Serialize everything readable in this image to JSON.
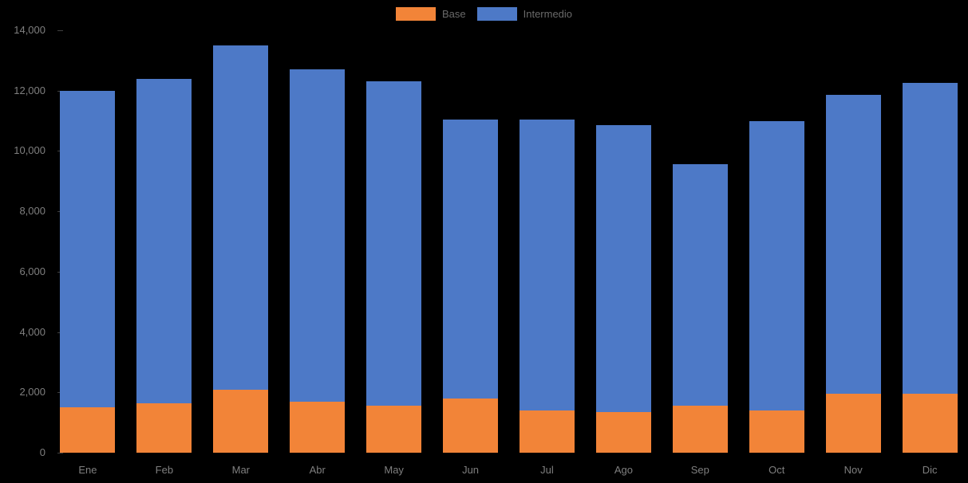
{
  "colors": {
    "base": "#F28438",
    "intermedio": "#4D79C7",
    "axis_text": "#7f7f7f",
    "legend_text": "#6a6a6a",
    "tick": "#3f3f3f",
    "background": "#000000"
  },
  "chart_data": {
    "type": "bar",
    "stacked": true,
    "title": "",
    "xlabel": "",
    "ylabel": "",
    "categories": [
      "Ene",
      "Feb",
      "Mar",
      "Abr",
      "May",
      "Jun",
      "Jul",
      "Ago",
      "Sep",
      "Oct",
      "Nov",
      "Dic"
    ],
    "series": [
      {
        "name": "Base",
        "color_key": "base",
        "values": [
          1500,
          1650,
          2100,
          1700,
          1550,
          1800,
          1400,
          1350,
          1550,
          1400,
          1950,
          1950
        ]
      },
      {
        "name": "Intermedio",
        "color_key": "intermedio",
        "values": [
          10500,
          10750,
          11400,
          11000,
          10750,
          9250,
          9650,
          9500,
          8000,
          9600,
          9900,
          10300
        ]
      }
    ],
    "totals": [
      12000,
      12400,
      13500,
      12700,
      12300,
      11050,
      11050,
      10850,
      9550,
      11000,
      11850,
      12250
    ],
    "ylim": [
      0,
      14000
    ],
    "ytick_interval": 2000,
    "ytick_labels": [
      "0",
      "2,000",
      "4,000",
      "6,000",
      "8,000",
      "10,000",
      "12,000",
      "14,000"
    ],
    "grid": false,
    "legend_position": "top-center"
  }
}
